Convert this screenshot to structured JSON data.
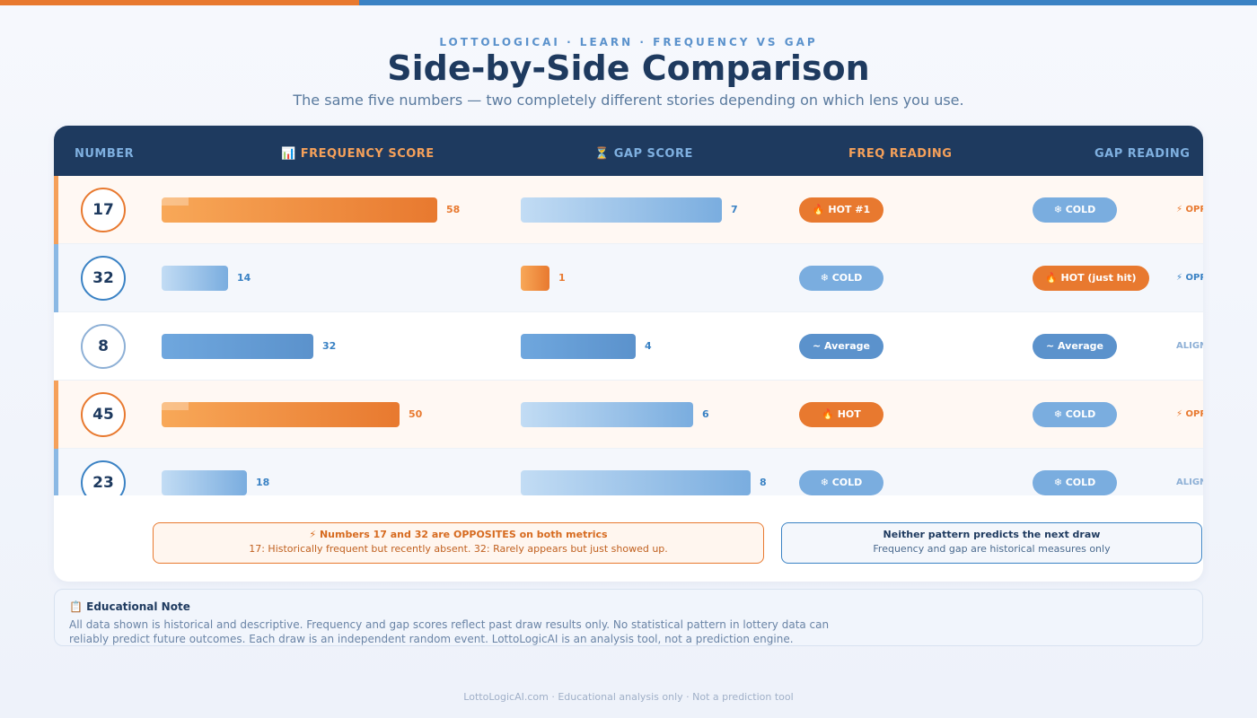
{
  "header": {
    "eyebrow": "LOTTOLOGICAI · LEARN · FREQUENCY VS GAP",
    "title": "Side-by-Side Comparison",
    "subtitle": "The same five numbers — two completely different stories depending on which lens you use."
  },
  "table": {
    "columns": {
      "number": "NUMBER",
      "freq_score": "📊 FREQUENCY SCORE",
      "gap_score": "⏳ GAP SCORE",
      "freq_reading": "FREQ READING",
      "gap_reading": "GAP READING"
    }
  },
  "colors": {
    "navy": "#1e3a5f",
    "orange": "#e8792f",
    "blue": "#3a82c4",
    "mid_blue": "#5b92cc",
    "light_blue": "#7aaddf"
  },
  "chart_data": {
    "type": "bar",
    "title": "Side-by-Side Comparison",
    "categories": [
      "17",
      "32",
      "8",
      "45",
      "23"
    ],
    "series": [
      {
        "name": "Frequency Score",
        "values": [
          58,
          14,
          32,
          50,
          18
        ]
      },
      {
        "name": "Gap Score",
        "values": [
          7,
          1,
          4,
          6,
          8
        ]
      }
    ],
    "freq_max": 58,
    "gap_max": 8,
    "rows": [
      {
        "number": "17",
        "freq": 58,
        "gap": 7,
        "freq_reading": "🔥 HOT #1",
        "gap_reading": "❄ COLD",
        "verdict": "⚡ OPPOSITE",
        "freq_style": "hot",
        "gap_style": "cold",
        "verdict_style": "opposite-orange",
        "row_style": "orange"
      },
      {
        "number": "32",
        "freq": 14,
        "gap": 1,
        "freq_reading": "❄ COLD",
        "gap_reading": "🔥 HOT (just hit)",
        "verdict": "⚡ OPPOSITE",
        "freq_style": "cold",
        "gap_style": "hot",
        "verdict_style": "opposite-blue",
        "row_style": "blue"
      },
      {
        "number": "8",
        "freq": 32,
        "gap": 4,
        "freq_reading": "~ Average",
        "gap_reading": "~ Average",
        "verdict": "ALIGNED",
        "freq_style": "avg",
        "gap_style": "avg",
        "verdict_style": "aligned",
        "row_style": "white"
      },
      {
        "number": "45",
        "freq": 50,
        "gap": 6,
        "freq_reading": "🔥 HOT",
        "gap_reading": "❄ COLD",
        "verdict": "⚡ OPPOSITE",
        "freq_style": "hot",
        "gap_style": "cold",
        "verdict_style": "opposite-orange",
        "row_style": "orange"
      },
      {
        "number": "23",
        "freq": 18,
        "gap": 8,
        "freq_reading": "❄ COLD",
        "gap_reading": "❄ COLD",
        "verdict": "ALIGNED",
        "freq_style": "cold",
        "gap_style": "cold",
        "verdict_style": "aligned",
        "row_style": "blue"
      }
    ]
  },
  "callouts": {
    "opposites_title": "⚡ Numbers 17 and 32 are OPPOSITES on both metrics",
    "opposites_text": "17: Historically frequent but recently absent. 32: Rarely appears but just showed up.",
    "neither_title": "Neither pattern predicts the next draw",
    "neither_text": "Frequency and gap are historical measures only"
  },
  "educational_note": {
    "title": "📋 Educational Note",
    "text": "All data shown is historical and descriptive. Frequency and gap scores reflect past draw results only. No statistical pattern in lottery data can reliably predict future outcomes. Each draw is an independent random event. LottoLogicAI is an analysis tool, not a prediction engine."
  },
  "footer": {
    "text": "LottoLogicAI.com · Educational analysis only · Not a prediction tool"
  }
}
